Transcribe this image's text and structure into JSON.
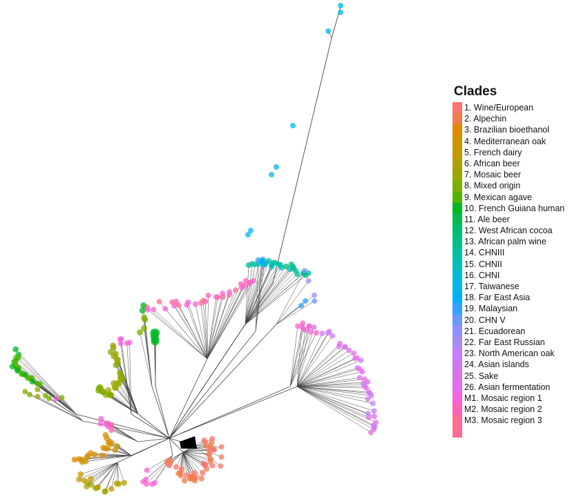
{
  "legend": {
    "title": "Clades",
    "items": [
      {
        "label": "1. Wine/European",
        "color": "#F8766D"
      },
      {
        "label": "2. Alpechin",
        "color": "#F07E4A"
      },
      {
        "label": "3. Brazilian bioethanol",
        "color": "#E38900"
      },
      {
        "label": "4. Mediterranean oak",
        "color": "#D39200"
      },
      {
        "label": "5. French dairy",
        "color": "#C49A00"
      },
      {
        "label": "6. African beer",
        "color": "#B0A100"
      },
      {
        "label": "7. Mosaic beer",
        "color": "#99A800"
      },
      {
        "label": "8. Mixed origin",
        "color": "#7CAE00"
      },
      {
        "label": "9. Mexican agave",
        "color": "#53B400"
      },
      {
        "label": "10. French Guiana human",
        "color": "#00B81F"
      },
      {
        "label": "11. Ale beer",
        "color": "#00BB4E"
      },
      {
        "label": "12. West African cocoa",
        "color": "#00BE6C"
      },
      {
        "label": "13. African palm wine",
        "color": "#00C087"
      },
      {
        "label": "14. CHNIII",
        "color": "#00C0A0"
      },
      {
        "label": "15. CHNII",
        "color": "#00BFB8"
      },
      {
        "label": "16. CHNI",
        "color": "#00BCD8"
      },
      {
        "label": "17. Taiwanese",
        "color": "#00B7EB"
      },
      {
        "label": "18. Far East Asia",
        "color": "#00B0F6"
      },
      {
        "label": "19. Malaysian",
        "color": "#35A2FF"
      },
      {
        "label": "20. CHN V",
        "color": "#6B9AF6"
      },
      {
        "label": "21. Ecuadorean",
        "color": "#8F91FF"
      },
      {
        "label": "22. Far East Russian",
        "color": "#A98BF5"
      },
      {
        "label": "23. North American oak",
        "color": "#C77CFF"
      },
      {
        "label": "24. Asian islands",
        "color": "#D277F2"
      },
      {
        "label": "25. Sake",
        "color": "#DD71E7"
      },
      {
        "label": "26. Asian fermentation",
        "color": "#E76BF3"
      },
      {
        "label": "M1. Mosaic region 1",
        "color": "#FA62DB"
      },
      {
        "label": "M2. Mosaic region 2",
        "color": "#FF62BC"
      },
      {
        "label": "M3. Mosaic region 3",
        "color": "#FF6C91"
      }
    ],
    "extra_swatch_color": "#FF6C91"
  },
  "tree": {
    "branch_color": "#444444",
    "tip_opacity": 0.75
  }
}
